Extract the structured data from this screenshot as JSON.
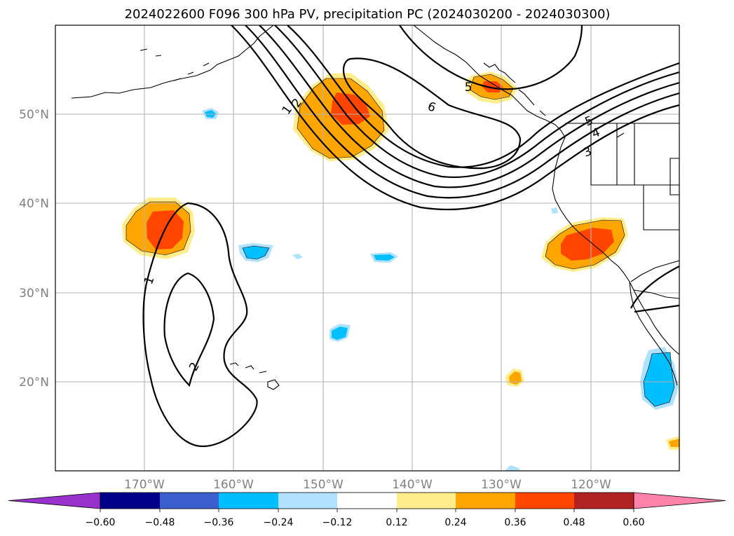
{
  "title": "2024022600 F096 300 hPa PV, precipitation PC (2024030200 - 2024030300)",
  "axes": {
    "lon_labels": [
      "170°W",
      "160°W",
      "150°W",
      "140°W",
      "130°W",
      "120°W"
    ],
    "lat_labels": [
      "50°N",
      "40°N",
      "30°N",
      "20°N"
    ]
  },
  "colorbar": {
    "ticks": [
      "−0.60",
      "−0.48",
      "−0.36",
      "−0.24",
      "−0.12",
      "0.12",
      "0.24",
      "0.36",
      "0.48",
      "0.60"
    ],
    "colors": [
      "#9932cc",
      "#00008b",
      "#3a5fcd",
      "#00bfff",
      "#b0e2ff",
      "#ffffff",
      "#ffec8b",
      "#ffa500",
      "#ff4500",
      "#b22222",
      "#ff82ab"
    ]
  },
  "pv_contour_labels": [
    {
      "text": "1",
      "role": "trough"
    },
    {
      "text": "2",
      "role": "trough"
    },
    {
      "text": "1",
      "role": "jet"
    },
    {
      "text": "2",
      "role": "jet"
    },
    {
      "text": "6",
      "role": "ridge"
    },
    {
      "text": "5",
      "role": "coast"
    },
    {
      "text": "3",
      "role": "east"
    },
    {
      "text": "4",
      "role": "east"
    },
    {
      "text": "5",
      "role": "east"
    }
  ],
  "colors": {
    "pos_low": "#ffec8b",
    "pos_mid": "#ffa500",
    "pos_high": "#ff4500",
    "neg_low": "#b0e2ff",
    "neg_mid": "#00bfff"
  }
}
